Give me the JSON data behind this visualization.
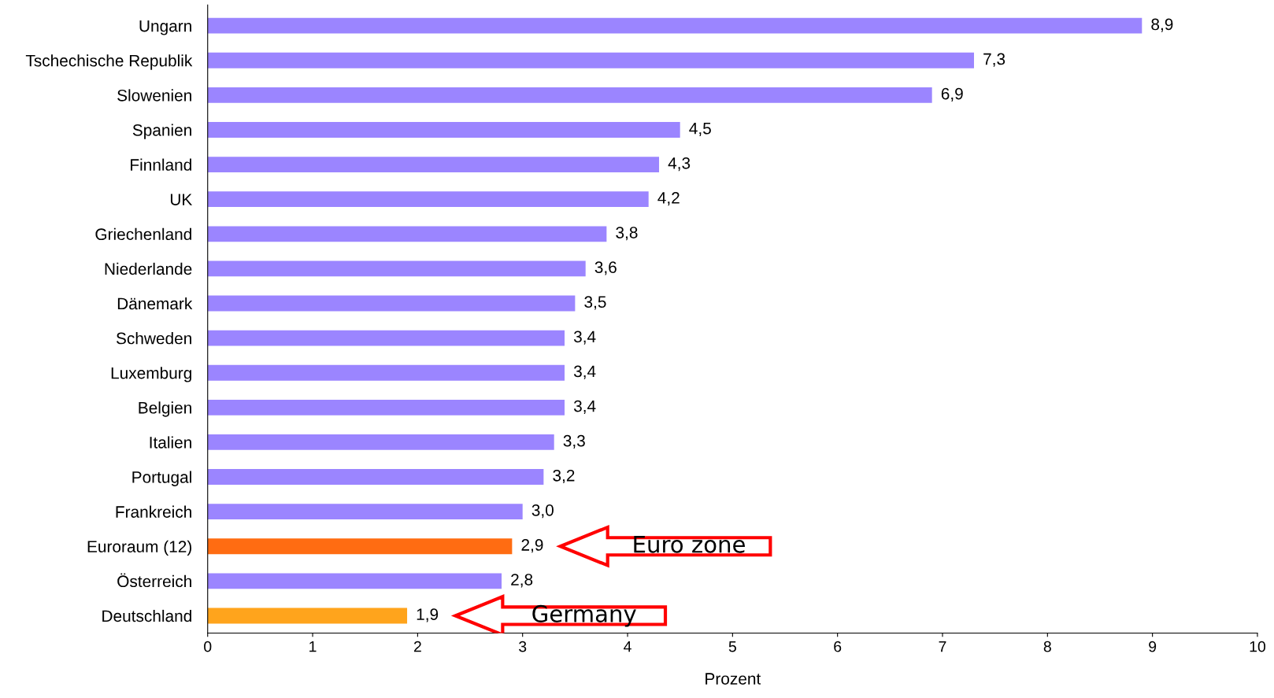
{
  "chart_data": {
    "type": "bar",
    "orientation": "horizontal",
    "xlabel": "Prozent",
    "categories": [
      "Ungarn",
      "Tschechische Republik",
      "Slowenien",
      "Spanien",
      "Finnland",
      "UK",
      "Griechenland",
      "Niederlande",
      "Dänemark",
      "Schweden",
      "Luxemburg",
      "Belgien",
      "Italien",
      "Portugal",
      "Frankreich",
      "Euroraum (12)",
      "Österreich",
      "Deutschland"
    ],
    "values": [
      8.9,
      7.3,
      6.9,
      4.5,
      4.3,
      4.2,
      3.8,
      3.6,
      3.5,
      3.4,
      3.4,
      3.4,
      3.3,
      3.2,
      3.0,
      2.9,
      2.8,
      1.9
    ],
    "colors": [
      "#9b85ff",
      "#9b85ff",
      "#9b85ff",
      "#9b85ff",
      "#9b85ff",
      "#9b85ff",
      "#9b85ff",
      "#9b85ff",
      "#9b85ff",
      "#9b85ff",
      "#9b85ff",
      "#9b85ff",
      "#9b85ff",
      "#9b85ff",
      "#9b85ff",
      "#ff6c12",
      "#9b85ff",
      "#ffa41c"
    ],
    "value_labels": [
      "8,9",
      "7,3",
      "6,9",
      "4,5",
      "4,3",
      "4,2",
      "3,8",
      "3,6",
      "3,5",
      "3,4",
      "3,4",
      "3,4",
      "3,3",
      "3,2",
      "3,0",
      "2,9",
      "2,8",
      "1,9"
    ],
    "xlim": [
      0,
      10
    ],
    "xticks": [
      0,
      1,
      2,
      3,
      4,
      5,
      6,
      7,
      8,
      9,
      10
    ],
    "grid": false,
    "legend": false,
    "annotations": [
      "Euro zone",
      "Germany"
    ]
  }
}
